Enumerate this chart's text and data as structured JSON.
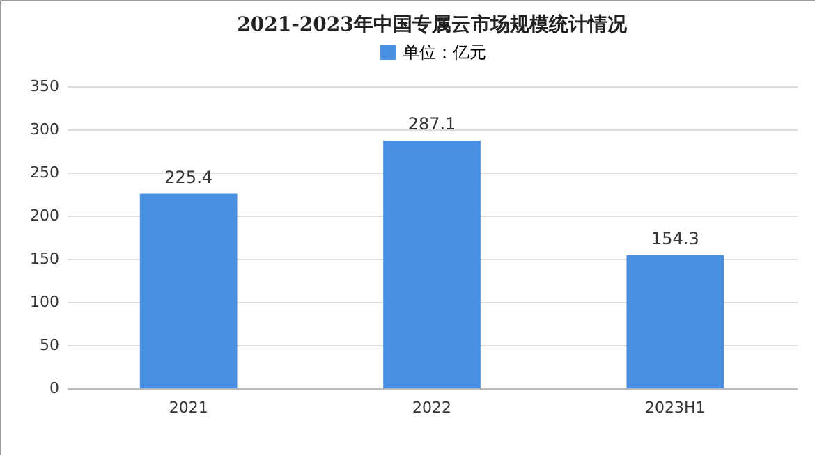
{
  "chart_data": {
    "type": "bar",
    "title": "2021-2023年中国专属云市场规模统计情况",
    "categories": [
      "2021",
      "2022",
      "2023H1"
    ],
    "series": [
      {
        "name": "单位：亿元",
        "color": "#4a90e2",
        "values": [
          225.4,
          287.1,
          154.3
        ]
      }
    ],
    "ylim": [
      0,
      350
    ],
    "yticks": [
      0,
      50,
      100,
      150,
      200,
      250,
      300,
      350
    ],
    "grid": "y",
    "legend": "top",
    "data_labels": true
  }
}
